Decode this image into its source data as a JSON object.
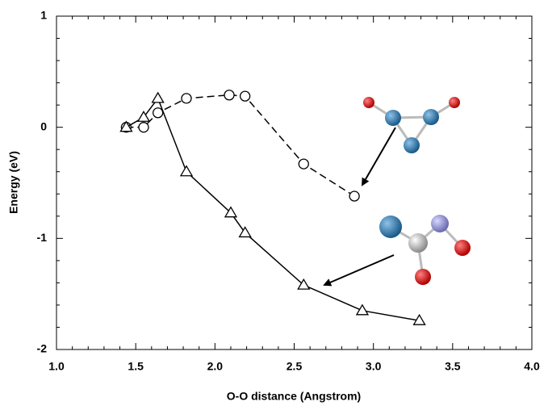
{
  "chart_data": {
    "type": "line",
    "x_label": "O-O distance (Angstrom)",
    "y_label": "Energy (eV)",
    "xlim": [
      1.0,
      4.0
    ],
    "ylim": [
      -2,
      1
    ],
    "xticks": [
      {
        "value": 1.0,
        "label": "1.0"
      },
      1.5,
      {
        "value": 2.0,
        "label": "2.0"
      },
      2.5,
      {
        "value": 3.0,
        "label": "3.0"
      },
      3.5,
      {
        "value": 4.0,
        "label": "4.0"
      }
    ],
    "yticks": [
      -2,
      -1,
      0,
      1
    ],
    "series": [
      {
        "color": "#000000",
        "marker": "circle",
        "dash": true,
        "x": [
          1.44,
          1.55,
          1.64,
          1.82,
          2.09,
          2.19,
          2.56,
          2.88
        ],
        "values": [
          0,
          0,
          0.13,
          0.26,
          0.29,
          0.28,
          -0.33,
          -0.62
        ]
      },
      {
        "color": "#000000",
        "marker": "triangle",
        "dash": false,
        "x": [
          1.44,
          1.55,
          1.64,
          1.82,
          2.1,
          2.19,
          2.56,
          2.93,
          3.29
        ],
        "values": [
          0,
          0.09,
          0.26,
          -0.4,
          -0.77,
          -0.95,
          -1.42,
          -1.65,
          -1.74
        ]
      }
    ]
  }
}
